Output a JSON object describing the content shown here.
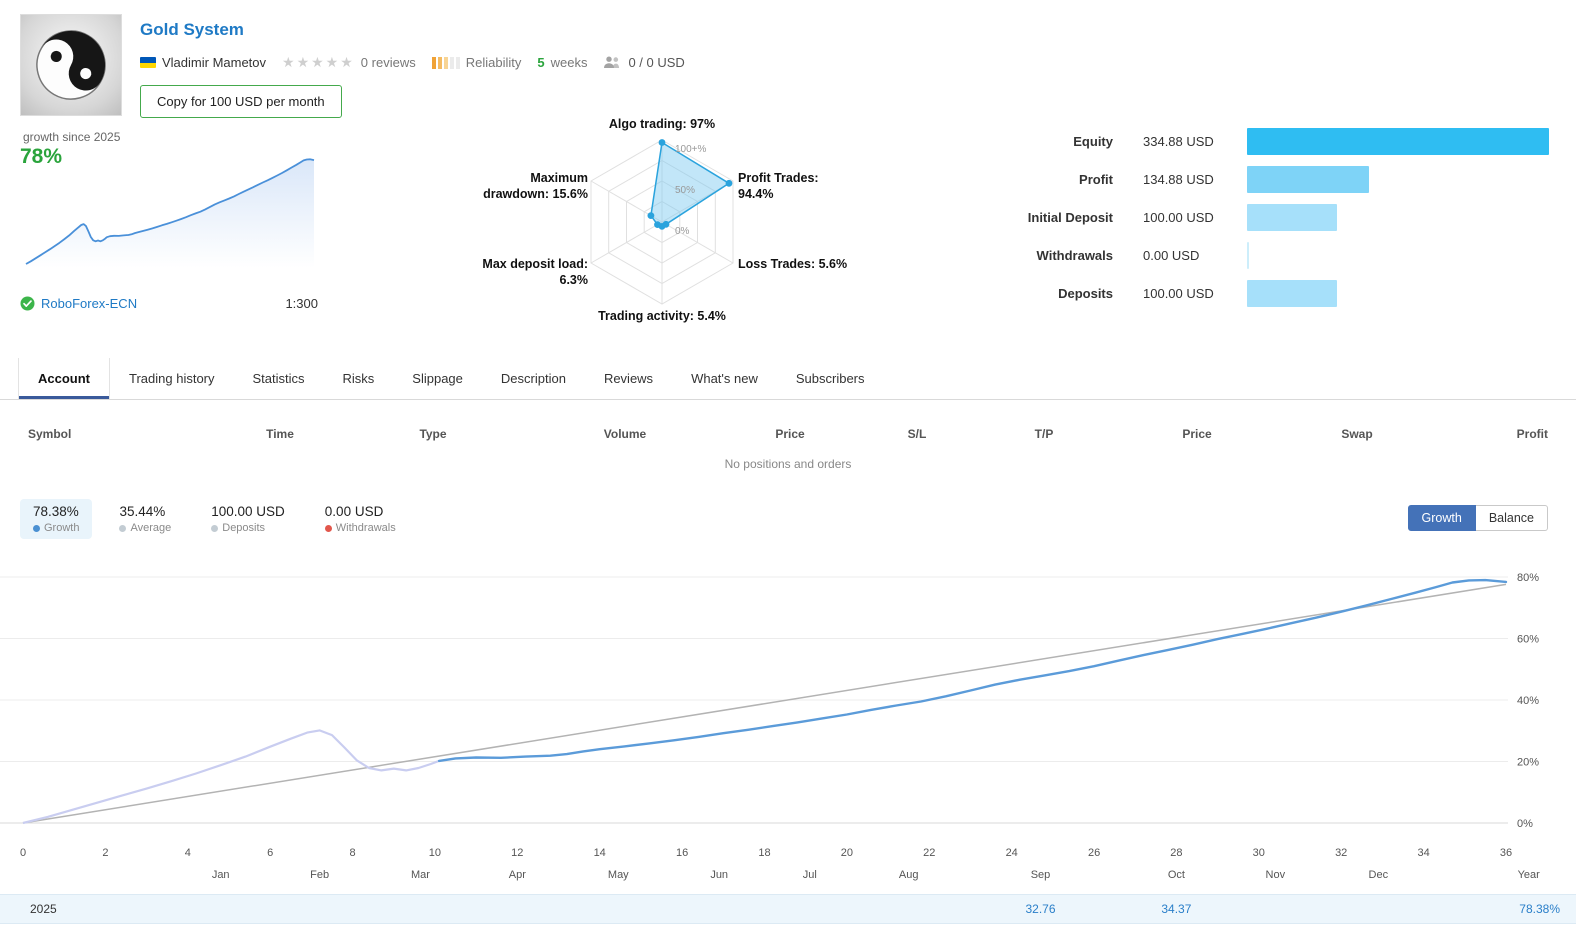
{
  "header": {
    "title": "Gold System",
    "author": "Vladimir Mametov",
    "rating_stars": "★★★★★",
    "reviews": "0 reviews",
    "reliability_label": "Reliability",
    "weeks_value": "5",
    "weeks_label": "weeks",
    "subscribers_price": "0 / 0 USD",
    "copy_button": "Copy for 100 USD per month"
  },
  "growth_panel": {
    "caption": "growth since 2025",
    "value": "78%",
    "broker": "RoboForex-ECN",
    "leverage": "1:300"
  },
  "equity_panel": {
    "rows": [
      {
        "label": "Equity",
        "value": "334.88 USD",
        "pct": 100,
        "color": "#2fbdf2"
      },
      {
        "label": "Profit",
        "value": "134.88 USD",
        "pct": 40.3,
        "color": "#7ed3f7"
      },
      {
        "label": "Initial Deposit",
        "value": "100.00 USD",
        "pct": 29.9,
        "color": "#a6e0fa"
      },
      {
        "label": "Withdrawals",
        "value": "0.00 USD",
        "pct": 0.8,
        "color": "#cdeefb"
      },
      {
        "label": "Deposits",
        "value": "100.00 USD",
        "pct": 29.9,
        "color": "#a6e0fa"
      }
    ]
  },
  "tabs": [
    {
      "label": "Account",
      "active": true
    },
    {
      "label": "Trading history",
      "active": false
    },
    {
      "label": "Statistics",
      "active": false
    },
    {
      "label": "Risks",
      "active": false
    },
    {
      "label": "Slippage",
      "active": false
    },
    {
      "label": "Description",
      "active": false
    },
    {
      "label": "Reviews",
      "active": false
    },
    {
      "label": "What's new",
      "active": false
    },
    {
      "label": "Subscribers",
      "active": false
    }
  ],
  "positions_table": {
    "columns": [
      "Symbol",
      "Time",
      "Type",
      "Volume",
      "Price",
      "S/L",
      "T/P",
      "Price",
      "Swap",
      "Profit"
    ],
    "empty_text": "No positions and orders"
  },
  "summary": {
    "items": [
      {
        "value": "78.38%",
        "label": "Growth",
        "dot_color": "#4a90d2",
        "highlighted": true
      },
      {
        "value": "35.44%",
        "label": "Average",
        "dot_color": "#c3ccd3",
        "highlighted": false
      },
      {
        "value": "100.00 USD",
        "label": "Deposits",
        "dot_color": "#c3ccd3",
        "highlighted": false
      },
      {
        "value": "0.00 USD",
        "label": "Withdrawals",
        "dot_color": "#e2574c",
        "highlighted": false
      }
    ],
    "toggle": [
      {
        "label": "Growth",
        "active": true
      },
      {
        "label": "Balance",
        "active": false
      }
    ]
  },
  "chart_data": [
    {
      "type": "radar",
      "name": "signal-radar",
      "max": 100,
      "ring_labels": [
        {
          "text": "100+%",
          "r": 1
        },
        {
          "text": "50%",
          "r": 0.5
        },
        {
          "text": "0%",
          "r": 0
        }
      ],
      "axes": [
        {
          "label": "Algo trading: 97%",
          "value": 97
        },
        {
          "label": "Profit Trades: 94.4%",
          "value": 94.4
        },
        {
          "label": "Loss Trades: 5.6%",
          "value": 5.6
        },
        {
          "label": "Trading activity: 5.4%",
          "value": 5.4
        },
        {
          "label": "Max deposit load: 6.3%",
          "value": 6.3
        },
        {
          "label": "Maximum drawdown: 15.6%",
          "value": 15.6
        }
      ]
    },
    {
      "type": "line",
      "name": "growth-chart",
      "ylim": [
        0,
        80
      ],
      "y_ticks": [
        0,
        20,
        40,
        60,
        80
      ],
      "y_tick_labels": [
        "0%",
        "20%",
        "40%",
        "60%",
        "80%"
      ],
      "x_ticks": [
        0,
        2,
        4,
        6,
        8,
        10,
        12,
        14,
        16,
        18,
        20,
        22,
        24,
        26,
        28,
        30,
        32,
        34,
        36
      ],
      "months": [
        {
          "label": "Jan",
          "x": 4.8
        },
        {
          "label": "Feb",
          "x": 7.2
        },
        {
          "label": "Mar",
          "x": 9.65
        },
        {
          "label": "Apr",
          "x": 12.0
        },
        {
          "label": "May",
          "x": 14.45
        },
        {
          "label": "Jun",
          "x": 16.9
        },
        {
          "label": "Jul",
          "x": 19.1
        },
        {
          "label": "Aug",
          "x": 21.5
        },
        {
          "label": "Sep",
          "x": 24.7
        },
        {
          "label": "Oct",
          "x": 28.0
        },
        {
          "label": "Nov",
          "x": 30.4
        },
        {
          "label": "Dec",
          "x": 32.9
        },
        {
          "label": "Year",
          "x": 36.55
        }
      ],
      "series": [
        {
          "name": "Growth",
          "color": "#5b9bd9",
          "light_color": "#c9cdf0",
          "light_until_x": 10.1,
          "points": [
            [
              0,
              0
            ],
            [
              0.6,
              2
            ],
            [
              1.2,
              4.3
            ],
            [
              1.8,
              6.6
            ],
            [
              2.4,
              8.9
            ],
            [
              3,
              11.2
            ],
            [
              3.6,
              13.6
            ],
            [
              4.2,
              16.1
            ],
            [
              4.8,
              18.8
            ],
            [
              5.4,
              21.6
            ],
            [
              6,
              24.8
            ],
            [
              6.5,
              27.4
            ],
            [
              6.9,
              29.4
            ],
            [
              7.2,
              30.1
            ],
            [
              7.5,
              28.6
            ],
            [
              7.8,
              24.6
            ],
            [
              8.1,
              20.4
            ],
            [
              8.4,
              17.9
            ],
            [
              8.7,
              17.1
            ],
            [
              9,
              17.7
            ],
            [
              9.3,
              17.1
            ],
            [
              9.6,
              17.9
            ],
            [
              9.9,
              19.2
            ],
            [
              10.1,
              20.2
            ],
            [
              10.5,
              21
            ],
            [
              11,
              21.3
            ],
            [
              11.6,
              21.2
            ],
            [
              12.2,
              21.6
            ],
            [
              12.8,
              21.9
            ],
            [
              13.2,
              22.4
            ],
            [
              13.6,
              23.3
            ],
            [
              14,
              24
            ],
            [
              14.6,
              24.9
            ],
            [
              15.2,
              25.9
            ],
            [
              15.8,
              26.9
            ],
            [
              16.4,
              28
            ],
            [
              17,
              29.2
            ],
            [
              17.6,
              30.3
            ],
            [
              18.2,
              31.5
            ],
            [
              18.8,
              32.7
            ],
            [
              19.4,
              34
            ],
            [
              20,
              35.3
            ],
            [
              20.6,
              36.8
            ],
            [
              21.2,
              38.2
            ],
            [
              21.8,
              39.5
            ],
            [
              22.4,
              41.2
            ],
            [
              23,
              43.1
            ],
            [
              23.6,
              45
            ],
            [
              24.2,
              46.6
            ],
            [
              24.8,
              48
            ],
            [
              25.4,
              49.4
            ],
            [
              26,
              51
            ],
            [
              26.6,
              52.8
            ],
            [
              27.2,
              54.6
            ],
            [
              27.8,
              56.3
            ],
            [
              28.4,
              58
            ],
            [
              29,
              59.8
            ],
            [
              29.6,
              61.5
            ],
            [
              30.2,
              63.2
            ],
            [
              30.8,
              65
            ],
            [
              31.4,
              66.8
            ],
            [
              32,
              68.7
            ],
            [
              32.6,
              70.7
            ],
            [
              33.2,
              72.8
            ],
            [
              33.8,
              74.9
            ],
            [
              34.3,
              76.7
            ],
            [
              34.7,
              78.2
            ],
            [
              35.1,
              78.9
            ],
            [
              35.5,
              79
            ],
            [
              36,
              78.4
            ]
          ]
        },
        {
          "name": "Trend",
          "color": "#b3b3b3",
          "points": [
            [
              0,
              0
            ],
            [
              36,
              77.6
            ]
          ]
        }
      ]
    },
    {
      "type": "area",
      "name": "growth-sparkline",
      "color": "#4a90d9",
      "same_series_as": "growth-chart"
    }
  ],
  "year_table": {
    "year": "2025",
    "values": [
      {
        "month": "Sep",
        "text": "32.76"
      },
      {
        "month": "Oct",
        "text": "34.37"
      },
      {
        "month": "Year",
        "text": "78.38%"
      }
    ]
  }
}
